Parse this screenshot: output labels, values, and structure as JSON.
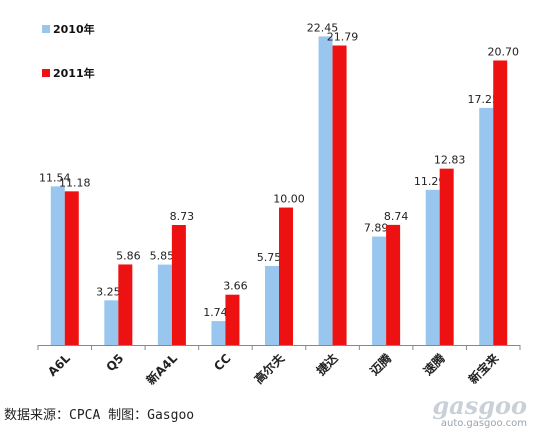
{
  "chart_data": {
    "type": "bar",
    "categories": [
      "A6L",
      "Q5",
      "新A4L",
      "CC",
      "高尔夫",
      "捷达",
      "迈腾",
      "速腾",
      "新宝来"
    ],
    "series": [
      {
        "name": "2010年",
        "values": [
          11.54,
          3.25,
          5.85,
          1.74,
          5.75,
          22.45,
          7.89,
          11.29,
          17.25
        ],
        "color": "#99c6ee"
      },
      {
        "name": "2011年",
        "values": [
          11.18,
          5.86,
          8.73,
          3.66,
          10.0,
          21.79,
          8.74,
          12.83,
          20.7
        ],
        "color": "#ee1111"
      }
    ],
    "value_labels": [
      [
        "11.54",
        "3.25",
        "5.85",
        "1.74",
        "5.75",
        "22.45",
        "7.89",
        "11.29",
        "17.25"
      ],
      [
        "11.18",
        "5.86",
        "8.73",
        "3.66",
        "10.00",
        "21.79",
        "8.74",
        "12.83",
        "20.70"
      ]
    ],
    "ylim": [
      0,
      23.5
    ],
    "legend_position": "top-left",
    "grid": false,
    "title": "",
    "xlabel": "",
    "ylabel": ""
  },
  "footer": {
    "source": "数据来源：CPCA  制图：Gasgoo"
  },
  "watermark": {
    "logo": "gasgoo",
    "url": "auto.gasgoo.com"
  }
}
